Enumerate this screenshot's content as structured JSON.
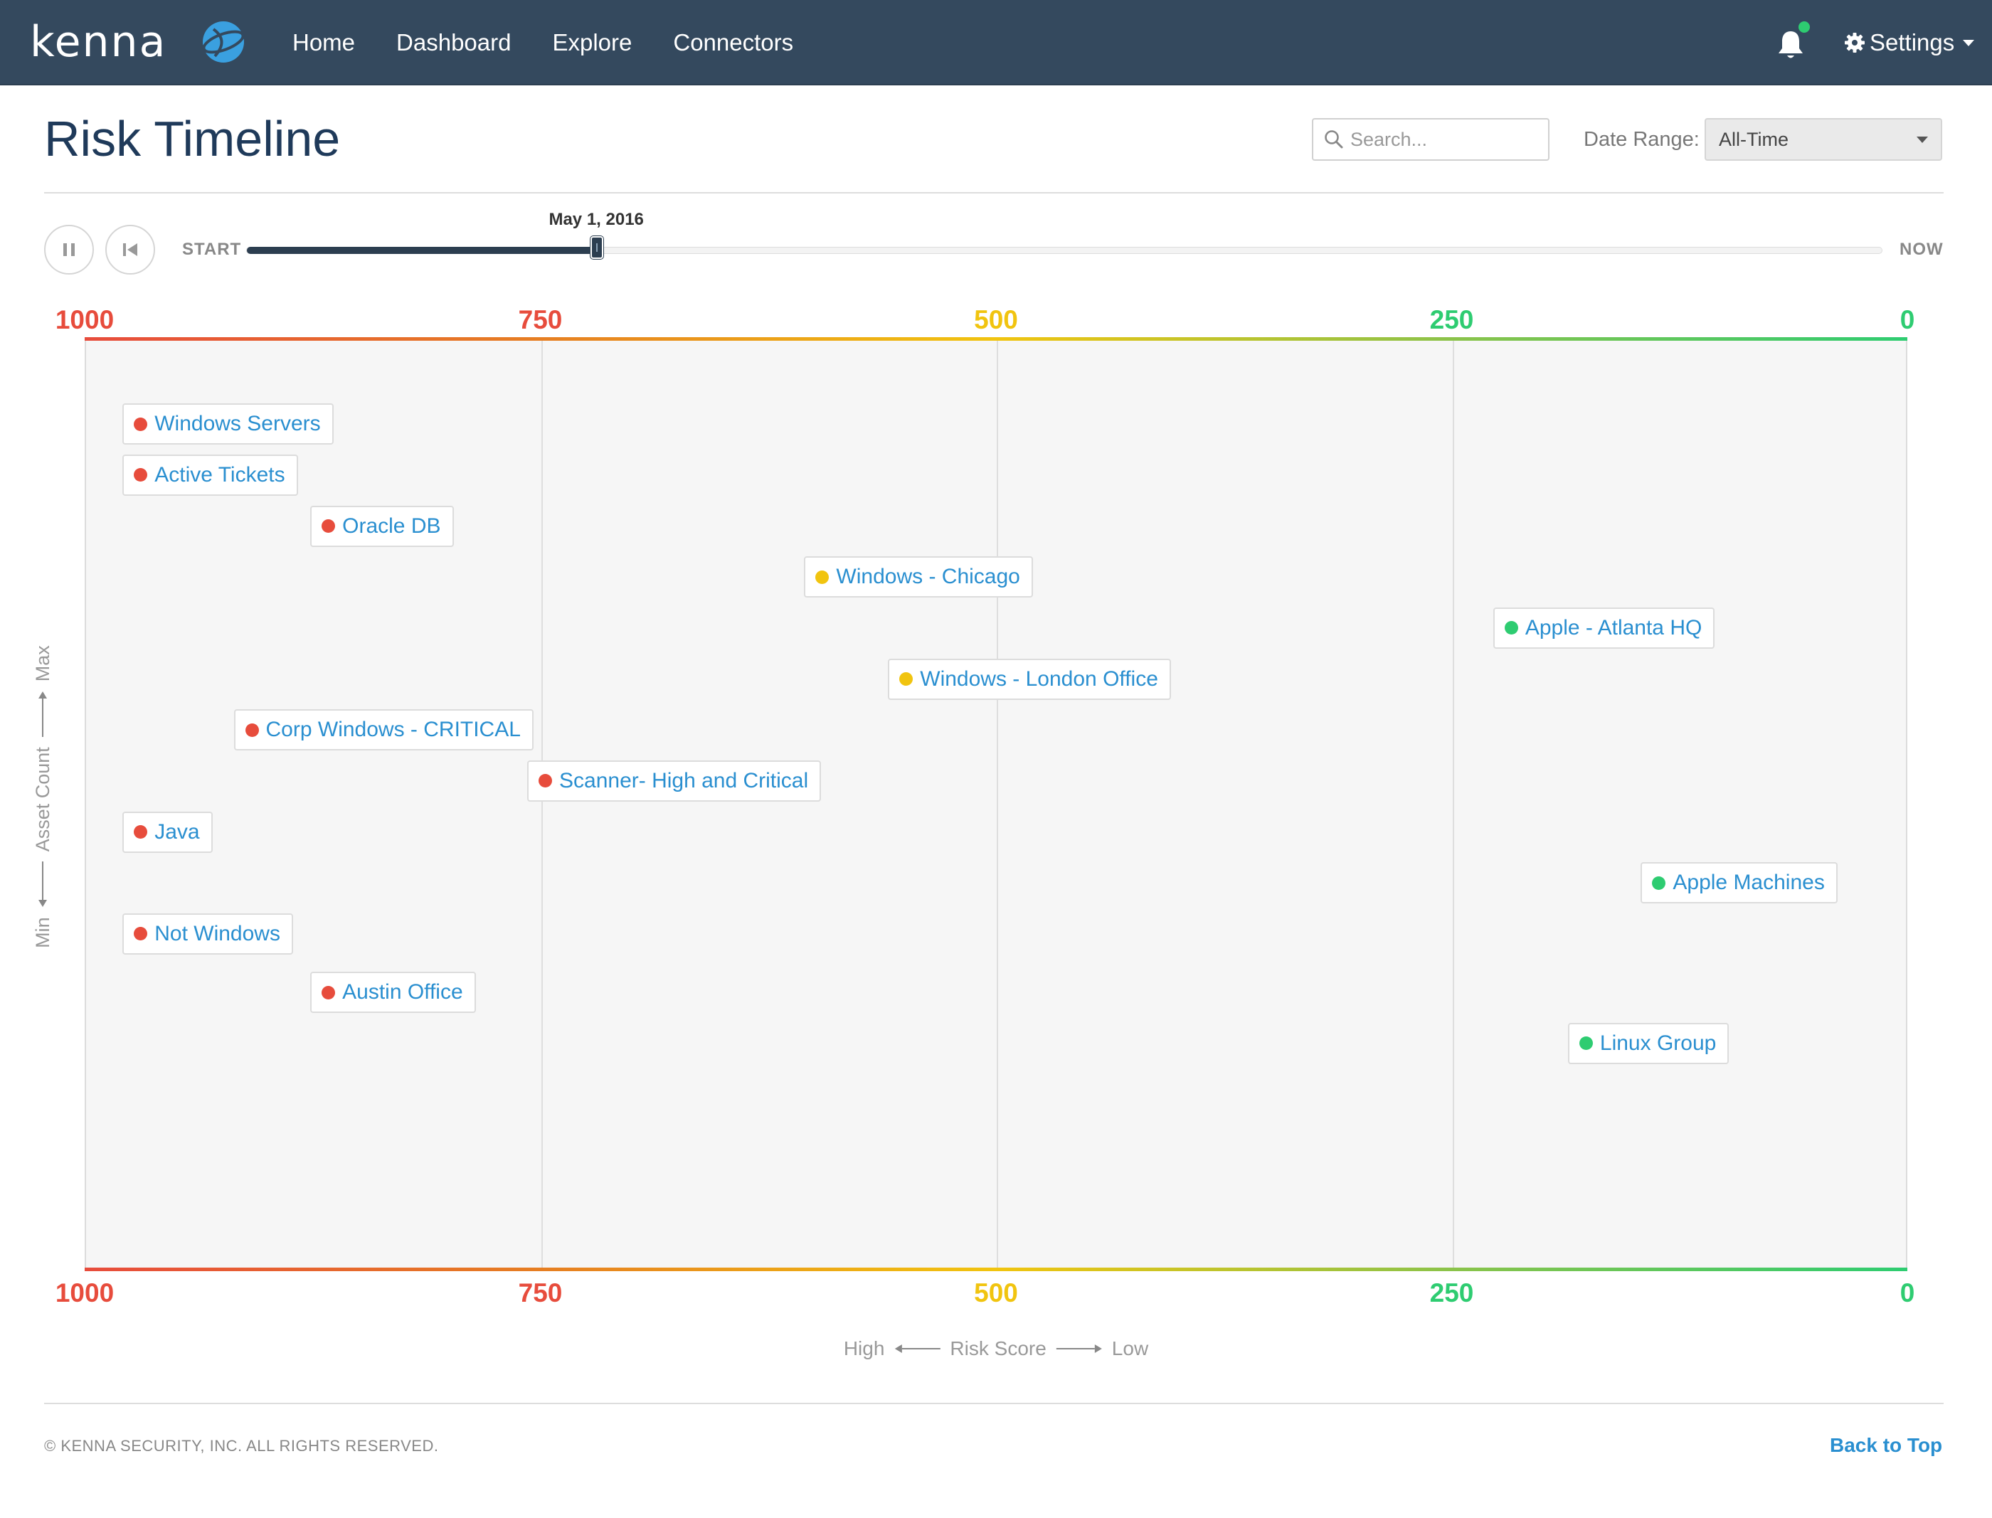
{
  "nav": {
    "logo_text": "kenna",
    "links": [
      "Home",
      "Dashboard",
      "Explore",
      "Connectors"
    ],
    "settings_label": "Settings",
    "notification_icon": "bell-icon",
    "notification_status_color": "#2ecc71"
  },
  "header": {
    "title": "Risk Timeline",
    "search_placeholder": "Search...",
    "date_range_label": "Date Range:",
    "date_range_value": "All-Time"
  },
  "timeline": {
    "start_label": "START",
    "now_label": "NOW",
    "current_date": "May 1, 2016",
    "progress": 0.214
  },
  "chart_data": {
    "type": "scatter",
    "x_ticks": [
      {
        "value": 1000,
        "label": "1000",
        "color": "#e74c3c"
      },
      {
        "value": 750,
        "label": "750",
        "color": "#e74c3c"
      },
      {
        "value": 500,
        "label": "500",
        "color": "#f1c40f"
      },
      {
        "value": 250,
        "label": "250",
        "color": "#2ecc71"
      },
      {
        "value": 0,
        "label": "0",
        "color": "#2ecc71"
      }
    ],
    "xlim": [
      1000,
      0
    ],
    "x_axis": {
      "high": "High",
      "label": "Risk Score",
      "low": "Low"
    },
    "y_axis": {
      "min": "Min",
      "label": "Asset Count",
      "max": "Max"
    },
    "groups": [
      {
        "name": "Windows Servers",
        "risk_score": 980,
        "asset_level": 0.91,
        "status": "red"
      },
      {
        "name": "Active Tickets",
        "risk_score": 980,
        "asset_level": 0.855,
        "status": "red"
      },
      {
        "name": "Oracle DB",
        "risk_score": 877,
        "asset_level": 0.8,
        "status": "red"
      },
      {
        "name": "Windows - Chicago",
        "risk_score": 606,
        "asset_level": 0.745,
        "status": "yellow"
      },
      {
        "name": "Apple - Atlanta HQ",
        "risk_score": 228,
        "asset_level": 0.69,
        "status": "green"
      },
      {
        "name": "Windows - London Office",
        "risk_score": 560,
        "asset_level": 0.635,
        "status": "yellow"
      },
      {
        "name": "Corp Windows - CRITICAL",
        "risk_score": 919,
        "asset_level": 0.58,
        "status": "red"
      },
      {
        "name": "Scanner- High and Critical",
        "risk_score": 758,
        "asset_level": 0.525,
        "status": "red"
      },
      {
        "name": "Java",
        "risk_score": 980,
        "asset_level": 0.47,
        "status": "red"
      },
      {
        "name": "Apple Machines",
        "risk_score": 147,
        "asset_level": 0.415,
        "status": "green"
      },
      {
        "name": "Not Windows",
        "risk_score": 980,
        "asset_level": 0.36,
        "status": "red"
      },
      {
        "name": "Austin Office",
        "risk_score": 877,
        "asset_level": 0.297,
        "status": "red"
      },
      {
        "name": "Linux Group",
        "risk_score": 187,
        "asset_level": 0.242,
        "status": "green"
      }
    ]
  },
  "status_colors": {
    "red": "#e74c3c",
    "yellow": "#f1c40f",
    "green": "#2ecc71"
  },
  "footer": {
    "copyright": "© KENNA SECURITY, INC. ALL RIGHTS RESERVED.",
    "back_to_top": "Back to Top"
  }
}
